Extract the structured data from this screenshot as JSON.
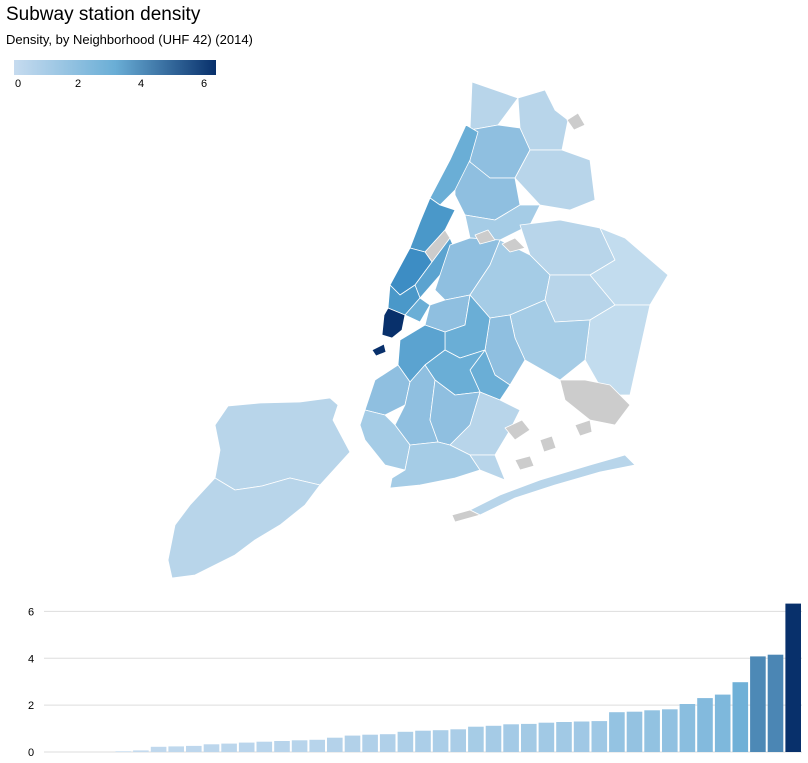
{
  "title": "Subway station density",
  "subtitle": "Density, by Neighborhood (UHF 42) (2014)",
  "legend": {
    "min": 0,
    "max": 6.3,
    "ticks": [
      "0",
      "2",
      "4",
      "6"
    ],
    "color_low": "#c6dbef",
    "color_high": "#08306b"
  },
  "colors": {
    "no_data": "#cccccc",
    "border": "#ffffff",
    "gridline": "#dddddd"
  },
  "chart_data": {
    "type": "bar",
    "ylim": [
      0,
      6.4
    ],
    "y_ticks": [
      "0",
      "2",
      "4",
      "6"
    ],
    "grid": true,
    "values": [
      0,
      0,
      0,
      0,
      0.03,
      0.07,
      0.22,
      0.24,
      0.26,
      0.33,
      0.36,
      0.4,
      0.44,
      0.47,
      0.5,
      0.52,
      0.61,
      0.7,
      0.74,
      0.76,
      0.86,
      0.91,
      0.93,
      0.97,
      1.08,
      1.12,
      1.18,
      1.2,
      1.25,
      1.28,
      1.3,
      1.32,
      1.7,
      1.72,
      1.78,
      1.82,
      2.05,
      2.3,
      2.45,
      2.98,
      4.08,
      4.15,
      6.33
    ]
  }
}
